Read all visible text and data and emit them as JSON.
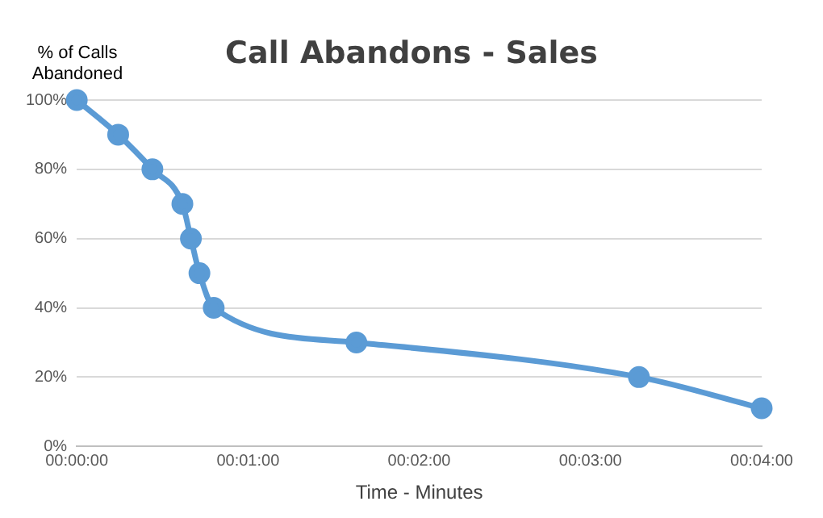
{
  "chart_data": {
    "type": "line",
    "title": "Call Abandons - Sales",
    "xlabel": "Time - Minutes",
    "ylabel": "% of Calls Abandoned",
    "x": [
      0,
      0.00403,
      0.00736,
      0.01028,
      0.01111,
      0.01194,
      0.01333,
      0.02722,
      0.05472,
      0.06667
    ],
    "series": [
      {
        "color": "#5b9bd5",
        "values": [
          100,
          90,
          80,
          70,
          60,
          50,
          40,
          30,
          20,
          11
        ]
      }
    ],
    "xlim": [
      0,
      0.06667
    ],
    "xticks": [
      {
        "value": 0,
        "label": "00:00:00"
      },
      {
        "value": 0.016667,
        "label": "00:01:00"
      },
      {
        "value": 0.033333,
        "label": "00:02:00"
      },
      {
        "value": 0.05,
        "label": "00:03:00"
      },
      {
        "value": 0.06667,
        "label": "00:04:00"
      }
    ],
    "ylim": [
      0,
      100
    ],
    "yticks": [
      {
        "value": 0,
        "label": "0%"
      },
      {
        "value": 20,
        "label": "20%"
      },
      {
        "value": 40,
        "label": "40%"
      },
      {
        "value": 60,
        "label": "60%"
      },
      {
        "value": 80,
        "label": "80%"
      },
      {
        "value": 100,
        "label": "100%"
      }
    ],
    "grid": "y",
    "legend": false,
    "marker": "circle",
    "line_style": "solid"
  }
}
